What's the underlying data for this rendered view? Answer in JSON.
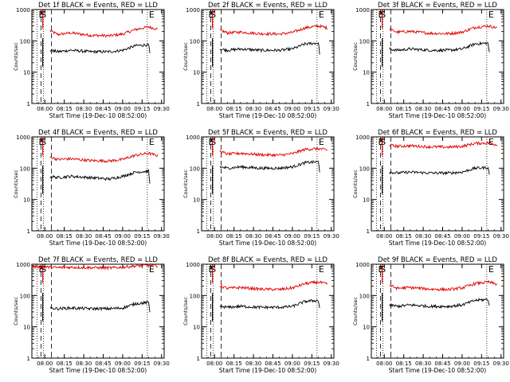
{
  "figure": {
    "x_label": "Start Time (19-Dec-10 08:52:00)",
    "y_label": "Counts/sec",
    "x_ticks": [
      "08:00",
      "08:15",
      "08:30",
      "08:45",
      "09:00",
      "09:15",
      "09:30"
    ],
    "y_ticks": [
      "1",
      "10",
      "100",
      "1000"
    ],
    "colors": {
      "events": "#000000",
      "lld": "#e00000",
      "background": "#ffffff",
      "axes": "#000000"
    }
  },
  "chart_data": [
    {
      "type": "line",
      "title": "Det 1f BLACK = Events, RED = LLD",
      "xlabel": "Start Time (19-Dec-10 08:52:00)",
      "ylabel": "Counts/sec",
      "x_ticks": [
        "08:00",
        "08:15",
        "08:30",
        "08:45",
        "09:00",
        "09:15",
        "09:30"
      ],
      "y_scale": "log",
      "ylim": [
        1,
        1000
      ],
      "grid": false,
      "markers": [
        {
          "label": "E",
          "time": "07:54",
          "style": "dotted"
        },
        {
          "label": "S",
          "time": "07:59",
          "style": "dotted"
        },
        {
          "label": "E",
          "time": "09:19",
          "style": "dotted"
        }
      ],
      "dashed_lines": [
        "07:57",
        "08:05"
      ],
      "series": [
        {
          "name": "LLD",
          "color": "red",
          "x": [
            "08:04",
            "08:10",
            "08:20",
            "08:35",
            "08:50",
            "09:00",
            "09:10",
            "09:20",
            "09:27"
          ],
          "y": [
            210,
            160,
            180,
            150,
            145,
            165,
            230,
            280,
            235
          ]
        },
        {
          "name": "Events",
          "color": "black",
          "x": [
            "08:04",
            "08:10",
            "08:20",
            "08:35",
            "08:50",
            "09:00",
            "09:10",
            "09:20",
            "09:21"
          ],
          "y": [
            50,
            45,
            50,
            45,
            45,
            50,
            70,
            75,
            38
          ]
        }
      ]
    },
    {
      "type": "line",
      "title": "Det 2f BLACK = Events, RED = LLD",
      "xlabel": "Start Time (19-Dec-10 08:52:00)",
      "ylabel": "Counts/sec",
      "x_ticks": [
        "08:00",
        "08:15",
        "08:30",
        "08:45",
        "09:00",
        "09:15",
        "09:30"
      ],
      "y_scale": "log",
      "ylim": [
        1,
        1000
      ],
      "grid": false,
      "markers": [
        {
          "label": "E",
          "time": "07:54",
          "style": "dotted"
        },
        {
          "label": "S",
          "time": "07:59",
          "style": "dotted"
        },
        {
          "label": "E",
          "time": "09:19",
          "style": "dotted"
        }
      ],
      "dashed_lines": [
        "07:57",
        "08:05"
      ],
      "series": [
        {
          "name": "LLD",
          "color": "red",
          "x": [
            "08:04",
            "08:10",
            "08:20",
            "08:35",
            "08:50",
            "09:00",
            "09:10",
            "09:20",
            "09:27"
          ],
          "y": [
            220,
            180,
            190,
            170,
            165,
            185,
            260,
            300,
            260
          ]
        },
        {
          "name": "Events",
          "color": "black",
          "x": [
            "08:04",
            "08:10",
            "08:20",
            "08:35",
            "08:50",
            "09:00",
            "09:10",
            "09:20",
            "09:21"
          ],
          "y": [
            55,
            50,
            55,
            50,
            50,
            55,
            80,
            85,
            40
          ]
        }
      ]
    },
    {
      "type": "line",
      "title": "Det 3f BLACK = Events, RED = LLD",
      "xlabel": "Start Time (19-Dec-10 08:52:00)",
      "ylabel": "Counts/sec",
      "x_ticks": [
        "08:00",
        "08:15",
        "08:30",
        "08:45",
        "09:00",
        "09:15",
        "09:30"
      ],
      "y_scale": "log",
      "ylim": [
        1,
        1000
      ],
      "grid": false,
      "markers": [
        {
          "label": "E",
          "time": "07:54",
          "style": "dotted"
        },
        {
          "label": "S",
          "time": "07:59",
          "style": "dotted"
        },
        {
          "label": "E",
          "time": "09:19",
          "style": "dotted"
        }
      ],
      "dashed_lines": [
        "07:57",
        "08:05"
      ],
      "series": [
        {
          "name": "LLD",
          "color": "red",
          "x": [
            "08:04",
            "08:10",
            "08:20",
            "08:35",
            "08:50",
            "09:00",
            "09:10",
            "09:20",
            "09:27"
          ],
          "y": [
            230,
            190,
            200,
            175,
            170,
            190,
            270,
            300,
            260
          ]
        },
        {
          "name": "Events",
          "color": "black",
          "x": [
            "08:04",
            "08:10",
            "08:20",
            "08:35",
            "08:50",
            "09:00",
            "09:10",
            "09:20",
            "09:21"
          ],
          "y": [
            55,
            50,
            55,
            50,
            50,
            55,
            80,
            85,
            40
          ]
        }
      ]
    },
    {
      "type": "line",
      "title": "Det 4f BLACK = Events, RED = LLD",
      "xlabel": "Start Time (19-Dec-10 08:52:00)",
      "ylabel": "Counts/sec",
      "x_ticks": [
        "08:00",
        "08:15",
        "08:30",
        "08:45",
        "09:00",
        "09:15",
        "09:30"
      ],
      "y_scale": "log",
      "ylim": [
        1,
        1000
      ],
      "grid": false,
      "markers": [
        {
          "label": "E",
          "time": "07:54",
          "style": "dotted"
        },
        {
          "label": "S",
          "time": "07:59",
          "style": "dotted"
        },
        {
          "label": "E",
          "time": "09:19",
          "style": "dotted"
        }
      ],
      "dashed_lines": [
        "07:57",
        "08:05"
      ],
      "series": [
        {
          "name": "LLD",
          "color": "red",
          "x": [
            "08:04",
            "08:10",
            "08:20",
            "08:35",
            "08:50",
            "09:00",
            "09:10",
            "09:20",
            "09:27"
          ],
          "y": [
            230,
            190,
            200,
            175,
            170,
            190,
            260,
            300,
            250
          ]
        },
        {
          "name": "Events",
          "color": "black",
          "x": [
            "08:04",
            "08:10",
            "08:20",
            "08:35",
            "08:50",
            "09:00",
            "09:10",
            "09:20",
            "09:21"
          ],
          "y": [
            55,
            50,
            55,
            50,
            45,
            55,
            75,
            80,
            30
          ]
        }
      ]
    },
    {
      "type": "line",
      "title": "Det 5f BLACK = Events, RED = LLD",
      "xlabel": "Start Time (19-Dec-10 08:52:00)",
      "ylabel": "Counts/sec",
      "x_ticks": [
        "08:00",
        "08:15",
        "08:30",
        "08:45",
        "09:00",
        "09:15",
        "09:30"
      ],
      "y_scale": "log",
      "ylim": [
        1,
        1000
      ],
      "grid": false,
      "markers": [
        {
          "label": "E",
          "time": "07:54",
          "style": "dotted"
        },
        {
          "label": "S",
          "time": "07:59",
          "style": "dotted"
        },
        {
          "label": "E",
          "time": "09:19",
          "style": "dotted"
        }
      ],
      "dashed_lines": [
        "07:57",
        "08:05"
      ],
      "series": [
        {
          "name": "LLD",
          "color": "red",
          "x": [
            "08:04",
            "08:10",
            "08:20",
            "08:35",
            "08:50",
            "09:00",
            "09:10",
            "09:20",
            "09:27"
          ],
          "y": [
            350,
            280,
            300,
            270,
            260,
            290,
            400,
            420,
            380
          ]
        },
        {
          "name": "Events",
          "color": "black",
          "x": [
            "08:04",
            "08:10",
            "08:20",
            "08:35",
            "08:50",
            "09:00",
            "09:10",
            "09:20",
            "09:21"
          ],
          "y": [
            110,
            100,
            110,
            100,
            100,
            110,
            150,
            160,
            80
          ]
        }
      ]
    },
    {
      "type": "line",
      "title": "Det 6f BLACK = Events, RED = LLD",
      "xlabel": "Start Time (19-Dec-10 08:52:00)",
      "ylabel": "Counts/sec",
      "x_ticks": [
        "08:00",
        "08:15",
        "08:30",
        "08:45",
        "09:00",
        "09:15",
        "09:30"
      ],
      "y_scale": "log",
      "ylim": [
        1,
        1000
      ],
      "grid": false,
      "markers": [
        {
          "label": "E",
          "time": "07:54",
          "style": "dotted"
        },
        {
          "label": "S",
          "time": "07:59",
          "style": "dotted"
        },
        {
          "label": "E",
          "time": "09:19",
          "style": "dotted"
        }
      ],
      "dashed_lines": [
        "07:57",
        "08:05"
      ],
      "series": [
        {
          "name": "LLD",
          "color": "red",
          "x": [
            "08:04",
            "08:10",
            "08:20",
            "08:35",
            "08:50",
            "09:00",
            "09:10",
            "09:20",
            "09:27"
          ],
          "y": [
            550,
            500,
            520,
            480,
            470,
            500,
            620,
            640,
            560
          ]
        },
        {
          "name": "Events",
          "color": "black",
          "x": [
            "08:04",
            "08:10",
            "08:20",
            "08:35",
            "08:50",
            "09:00",
            "09:10",
            "09:20",
            "09:21"
          ],
          "y": [
            75,
            70,
            75,
            70,
            70,
            75,
            100,
            105,
            60
          ]
        }
      ]
    },
    {
      "type": "line",
      "title": "Det 7f BLACK = Events, RED = LLD",
      "xlabel": "Start Time (19-Dec-10 08:52:00)",
      "ylabel": "Counts/sec",
      "x_ticks": [
        "08:00",
        "08:15",
        "08:30",
        "08:45",
        "09:00",
        "09:15",
        "09:30"
      ],
      "y_scale": "log",
      "ylim": [
        1,
        1000
      ],
      "grid": false,
      "markers": [
        {
          "label": "E",
          "time": "07:54",
          "style": "dotted"
        },
        {
          "label": "S",
          "time": "07:59",
          "style": "dotted"
        },
        {
          "label": "E",
          "time": "09:19",
          "style": "dotted"
        }
      ],
      "dashed_lines": [
        "07:57",
        "08:05"
      ],
      "series": [
        {
          "name": "LLD",
          "color": "red",
          "x": [
            "07:50",
            "08:04",
            "08:10",
            "08:20",
            "08:35",
            "08:50",
            "09:00",
            "09:10",
            "09:20",
            "09:27"
          ],
          "y": [
            850,
            800,
            780,
            800,
            780,
            760,
            800,
            880,
            920,
            900
          ]
        },
        {
          "name": "Events",
          "color": "black",
          "x": [
            "08:04",
            "08:10",
            "08:20",
            "08:35",
            "08:50",
            "09:00",
            "09:10",
            "09:20",
            "09:21"
          ],
          "y": [
            40,
            38,
            40,
            38,
            38,
            40,
            55,
            60,
            30
          ]
        }
      ]
    },
    {
      "type": "line",
      "title": "Det 8f BLACK = Events, RED = LLD",
      "xlabel": "Start Time (19-Dec-10 08:52:00)",
      "ylabel": "Counts/sec",
      "x_ticks": [
        "08:00",
        "08:15",
        "08:30",
        "08:45",
        "09:00",
        "09:15",
        "09:30"
      ],
      "y_scale": "log",
      "ylim": [
        1,
        1000
      ],
      "grid": false,
      "markers": [
        {
          "label": "E",
          "time": "07:54",
          "style": "dotted"
        },
        {
          "label": "S",
          "time": "07:59",
          "style": "dotted"
        },
        {
          "label": "E",
          "time": "09:19",
          "style": "dotted"
        }
      ],
      "dashed_lines": [
        "07:57",
        "08:05"
      ],
      "series": [
        {
          "name": "LLD",
          "color": "red",
          "x": [
            "08:04",
            "08:10",
            "08:20",
            "08:35",
            "08:50",
            "09:00",
            "09:10",
            "09:20",
            "09:27"
          ],
          "y": [
            200,
            170,
            180,
            160,
            155,
            175,
            240,
            270,
            230
          ]
        },
        {
          "name": "Events",
          "color": "black",
          "x": [
            "08:04",
            "08:10",
            "08:20",
            "08:35",
            "08:50",
            "09:00",
            "09:10",
            "09:20",
            "09:21"
          ],
          "y": [
            45,
            42,
            45,
            42,
            42,
            45,
            65,
            70,
            40
          ]
        }
      ]
    },
    {
      "type": "line",
      "title": "Det 9f BLACK = Events, RED = LLD",
      "xlabel": "Start Time (19-Dec-10 08:52:00)",
      "ylabel": "Counts/sec",
      "x_ticks": [
        "08:00",
        "08:15",
        "08:30",
        "08:45",
        "09:00",
        "09:15",
        "09:30"
      ],
      "y_scale": "log",
      "ylim": [
        1,
        1000
      ],
      "grid": false,
      "markers": [
        {
          "label": "E",
          "time": "07:54",
          "style": "dotted"
        },
        {
          "label": "S",
          "time": "07:59",
          "style": "dotted"
        },
        {
          "label": "E",
          "time": "09:19",
          "style": "dotted"
        }
      ],
      "dashed_lines": [
        "07:57",
        "08:05"
      ],
      "series": [
        {
          "name": "LLD",
          "color": "red",
          "x": [
            "08:04",
            "08:10",
            "08:20",
            "08:35",
            "08:50",
            "09:00",
            "09:10",
            "09:20",
            "09:27"
          ],
          "y": [
            210,
            170,
            180,
            160,
            155,
            175,
            240,
            270,
            230
          ]
        },
        {
          "name": "Events",
          "color": "black",
          "x": [
            "08:04",
            "08:10",
            "08:20",
            "08:35",
            "08:50",
            "09:00",
            "09:10",
            "09:20",
            "09:21"
          ],
          "y": [
            50,
            45,
            50,
            45,
            45,
            50,
            70,
            75,
            45
          ]
        }
      ]
    }
  ]
}
